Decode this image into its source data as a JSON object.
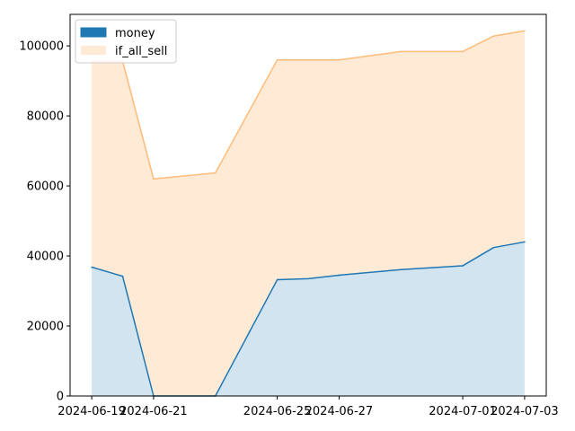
{
  "chart_data": {
    "type": "area",
    "x": [
      "2024-06-19",
      "2024-06-20",
      "2024-06-21",
      "2024-06-23",
      "2024-06-25",
      "2024-06-26",
      "2024-06-27",
      "2024-06-29",
      "2024-07-01",
      "2024-07-02",
      "2024-07-03"
    ],
    "x_ticks": [
      "2024-06-19",
      "2024-06-21",
      "2024-06-25",
      "2024-06-27",
      "2024-07-01",
      "2024-07-03"
    ],
    "series": [
      {
        "name": "money",
        "values": [
          36800,
          34200,
          0,
          0,
          33200,
          33500,
          34500,
          36100,
          37200,
          42400,
          44000
        ],
        "line_color": "#1f77b4",
        "fill_color": "#1f77b4"
      },
      {
        "name": "if_all_sell",
        "values": [
          95600,
          95600,
          62000,
          63700,
          96000,
          96000,
          96000,
          98400,
          98400,
          102800,
          104300
        ],
        "line_color": "#ffbb78",
        "fill_color": "#ffbb78"
      }
    ],
    "ylim": [
      0,
      109000
    ],
    "yticks": [
      0,
      20000,
      40000,
      60000,
      80000,
      100000
    ],
    "legend": "top-left",
    "grid": false,
    "title": "",
    "xlabel": "",
    "ylabel": ""
  }
}
